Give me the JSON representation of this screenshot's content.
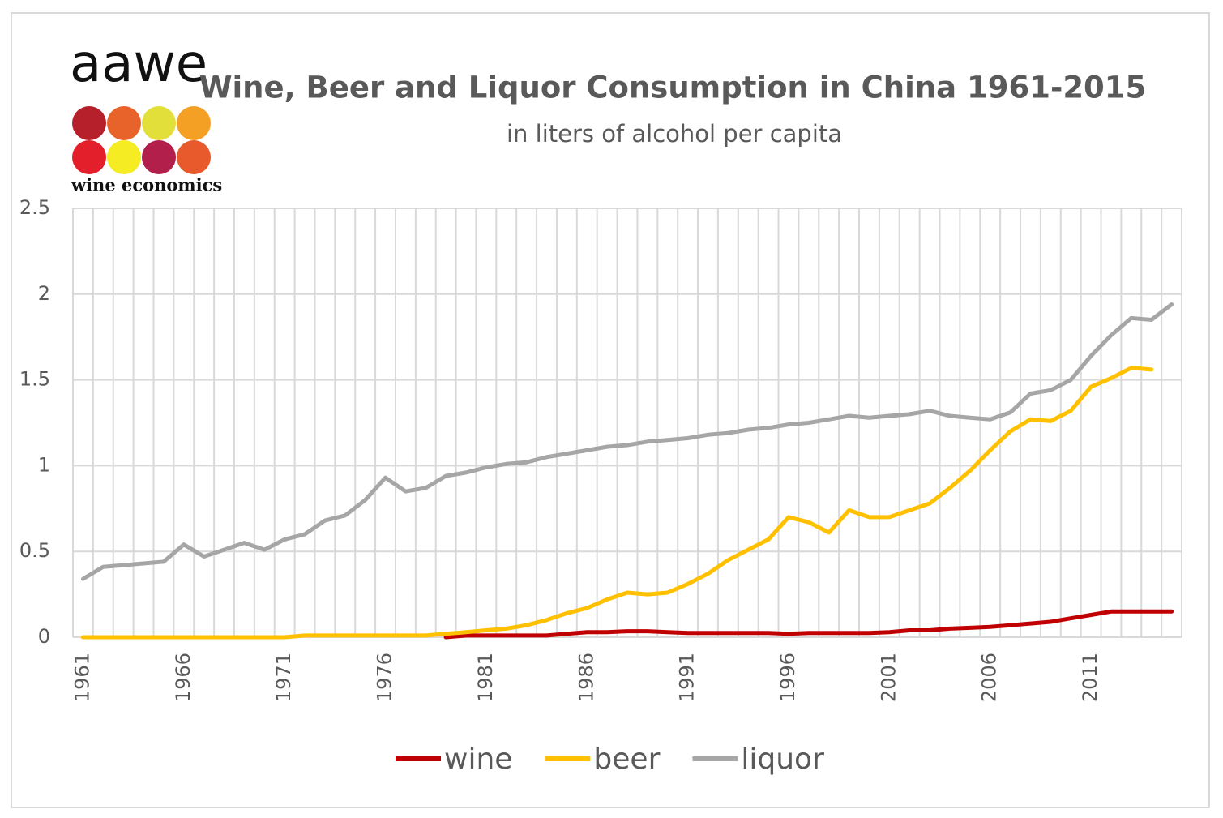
{
  "logo": {
    "text": "aawe",
    "tagline": "wine economics"
  },
  "chart_data": {
    "type": "line",
    "title": "Wine, Beer and Liquor Consumption in China 1961-2015",
    "subtitle": "in liters of alcohol per capita",
    "categories": [
      "1961",
      null,
      null,
      null,
      null,
      "1966",
      null,
      null,
      null,
      null,
      "1971",
      null,
      null,
      null,
      null,
      "1976",
      null,
      null,
      null,
      null,
      "1981",
      null,
      null,
      null,
      null,
      "1986",
      null,
      null,
      null,
      null,
      "1991",
      null,
      null,
      null,
      null,
      "1996",
      null,
      null,
      null,
      null,
      "2001",
      null,
      null,
      null,
      null,
      "2006",
      null,
      null,
      null,
      null,
      "2011",
      null,
      null,
      null,
      null
    ],
    "series": [
      {
        "name": "wine",
        "color": "#c00000",
        "values": [
          null,
          null,
          null,
          null,
          null,
          null,
          null,
          null,
          null,
          null,
          null,
          null,
          null,
          null,
          null,
          null,
          null,
          null,
          0.0,
          0.01,
          0.01,
          0.01,
          0.01,
          0.01,
          0.02,
          0.03,
          0.03,
          0.035,
          0.035,
          0.03,
          0.025,
          0.025,
          0.025,
          0.025,
          0.025,
          0.02,
          0.025,
          0.025,
          0.025,
          0.025,
          0.03,
          0.04,
          0.04,
          0.05,
          0.055,
          0.06,
          0.07,
          0.08,
          0.09,
          0.11,
          0.13,
          0.15,
          0.15,
          0.15,
          0.15
        ]
      },
      {
        "name": "beer",
        "color": "#ffc000",
        "values": [
          0,
          0,
          0,
          0,
          0,
          0,
          0,
          0,
          0,
          0,
          0,
          0.01,
          0.01,
          0.01,
          0.01,
          0.01,
          0.01,
          0.01,
          0.02,
          0.03,
          0.04,
          0.05,
          0.07,
          0.1,
          0.14,
          0.17,
          0.22,
          0.26,
          0.25,
          0.26,
          0.31,
          0.37,
          0.45,
          0.51,
          0.57,
          0.7,
          0.67,
          0.61,
          0.74,
          0.7,
          0.7,
          0.74,
          0.78,
          0.87,
          0.97,
          1.09,
          1.2,
          1.27,
          1.26,
          1.32,
          1.46,
          1.51,
          1.57,
          1.56,
          null
        ]
      },
      {
        "name": "liquor",
        "color": "#a6a6a6",
        "values": [
          0.34,
          0.41,
          0.42,
          0.43,
          0.44,
          0.54,
          0.47,
          0.51,
          0.55,
          0.51,
          0.57,
          0.6,
          0.68,
          0.71,
          0.8,
          0.93,
          0.85,
          0.87,
          0.94,
          0.96,
          0.99,
          1.01,
          1.02,
          1.05,
          1.07,
          1.09,
          1.11,
          1.12,
          1.14,
          1.15,
          1.16,
          1.18,
          1.19,
          1.21,
          1.22,
          1.24,
          1.25,
          1.27,
          1.29,
          1.28,
          1.29,
          1.3,
          1.32,
          1.29,
          1.28,
          1.27,
          1.31,
          1.42,
          1.44,
          1.5,
          1.64,
          1.76,
          1.86,
          1.85,
          1.94
        ]
      }
    ],
    "ylim": [
      0,
      2.5
    ],
    "yticks": [
      0,
      0.5,
      1,
      1.5,
      2,
      2.5
    ],
    "grid": true
  }
}
